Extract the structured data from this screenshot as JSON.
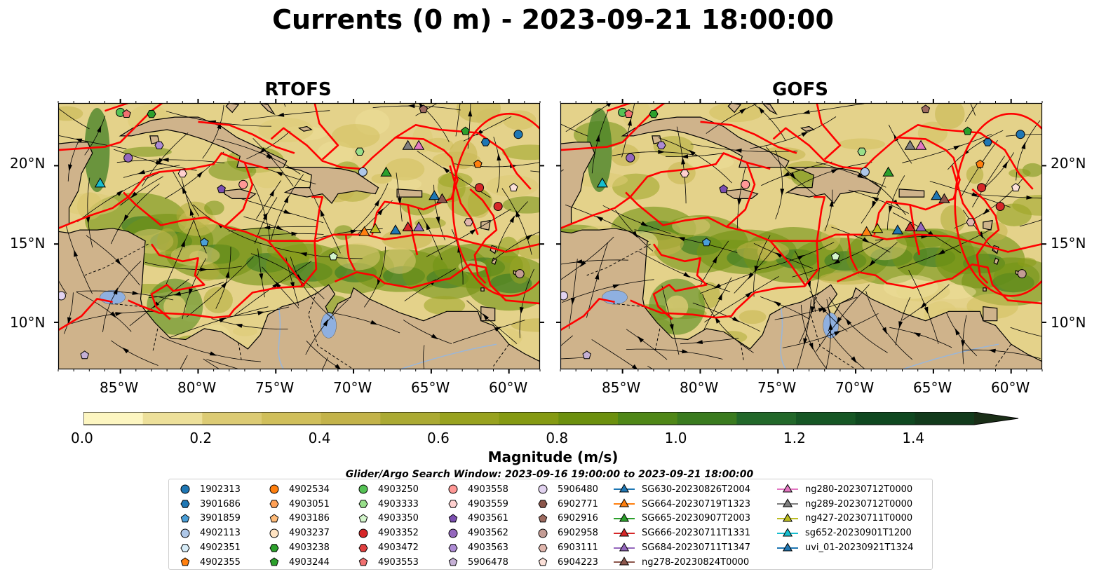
{
  "title": "Currents (0 m) - 2023-09-21 18:00:00",
  "panels": [
    {
      "name": "RTOFS"
    },
    {
      "name": "GOFS"
    }
  ],
  "lat_labels": [
    "20°N",
    "15°N",
    "10°N"
  ],
  "lon_labels": [
    "85°W",
    "80°W",
    "75°W",
    "70°W",
    "65°W",
    "60°W"
  ],
  "colorbar": {
    "label": "Magnitude (m/s)",
    "ticks": [
      "0.0",
      "0.2",
      "0.4",
      "0.6",
      "0.8",
      "1.0",
      "1.2",
      "1.4"
    ],
    "range": [
      0,
      1.5
    ],
    "colors": [
      "#fdf6c1",
      "#ede09a",
      "#dccb74",
      "#d0bf5b",
      "#c3b34a",
      "#abaa33",
      "#98a21f",
      "#859a12",
      "#6c900e",
      "#4f8717",
      "#3a7b1f",
      "#22682a",
      "#165725",
      "#0f4820",
      "#123b1c",
      "#1a2e17"
    ]
  },
  "search_window": "Glider/Argo Search Window: 2023-09-16 19:00:00 to 2023-09-21 18:00:00",
  "legend": [
    [
      {
        "label": "1902313",
        "marker": "circle",
        "color": "#1f77b4"
      },
      {
        "label": "3901686",
        "marker": "hexagon",
        "color": "#1f77b4"
      },
      {
        "label": "3901859",
        "marker": "pentagon",
        "color": "#4a9fd8"
      },
      {
        "label": "4902113",
        "marker": "circle",
        "color": "#aec7e8"
      },
      {
        "label": "4902351",
        "marker": "hexagon",
        "color": "#d6ecf8"
      },
      {
        "label": "4902355",
        "marker": "pentagon",
        "color": "#ff7f0e"
      }
    ],
    [
      {
        "label": "4902534",
        "marker": "circle",
        "color": "#ff7f0e"
      },
      {
        "label": "4903051",
        "marker": "hexagon",
        "color": "#ffa055"
      },
      {
        "label": "4903186",
        "marker": "pentagon",
        "color": "#ffbb78"
      },
      {
        "label": "4903237",
        "marker": "circle",
        "color": "#ffe3c2"
      },
      {
        "label": "4903238",
        "marker": "hexagon",
        "color": "#2ca02c"
      },
      {
        "label": "4903244",
        "marker": "pentagon",
        "color": "#2ca02c"
      }
    ],
    [
      {
        "label": "4903250",
        "marker": "circle",
        "color": "#55c255"
      },
      {
        "label": "4903333",
        "marker": "hexagon",
        "color": "#98df8a"
      },
      {
        "label": "4903350",
        "marker": "pentagon",
        "color": "#d4f5cc"
      },
      {
        "label": "4903352",
        "marker": "circle",
        "color": "#d62728"
      },
      {
        "label": "4903472",
        "marker": "hexagon",
        "color": "#e04040"
      },
      {
        "label": "4903553",
        "marker": "pentagon",
        "color": "#f07070"
      }
    ],
    [
      {
        "label": "4903558",
        "marker": "circle",
        "color": "#ff9896"
      },
      {
        "label": "4903559",
        "marker": "hexagon",
        "color": "#ffd0cf"
      },
      {
        "label": "4903561",
        "marker": "pentagon",
        "color": "#7b4fb0"
      },
      {
        "label": "4903562",
        "marker": "circle",
        "color": "#9467bd"
      },
      {
        "label": "4903563",
        "marker": "hexagon",
        "color": "#ad8bd4"
      },
      {
        "label": "5906478",
        "marker": "pentagon",
        "color": "#c5b0d5"
      }
    ],
    [
      {
        "label": "5906480",
        "marker": "circle",
        "color": "#e2d3f0"
      },
      {
        "label": "6902771",
        "marker": "hexagon",
        "color": "#8c564b"
      },
      {
        "label": "6902916",
        "marker": "pentagon",
        "color": "#9e6b60"
      },
      {
        "label": "6902958",
        "marker": "circle",
        "color": "#c49c94"
      },
      {
        "label": "6903111",
        "marker": "hexagon",
        "color": "#e0b6ad"
      },
      {
        "label": "6904223",
        "marker": "pentagon",
        "color": "#fbe0d8"
      }
    ],
    [
      {
        "label": "SG630-20230826T2004",
        "marker": "triangle",
        "color": "#1f77b4"
      },
      {
        "label": "SG664-20230719T1323",
        "marker": "triangle",
        "color": "#ff7f0e"
      },
      {
        "label": "SG665-20230907T2003",
        "marker": "triangle",
        "color": "#2ca02c"
      },
      {
        "label": "SG666-20230711T1331",
        "marker": "triangle",
        "color": "#d62728"
      },
      {
        "label": "SG684-20230711T1347",
        "marker": "triangle",
        "color": "#9467bd"
      },
      {
        "label": "ng278-20230824T0000",
        "marker": "triangle",
        "color": "#8c564b"
      }
    ],
    [
      {
        "label": "ng280-20230712T0000",
        "marker": "triangle",
        "color": "#e377c2"
      },
      {
        "label": "ng289-20230712T0000",
        "marker": "triangle",
        "color": "#7f7f7f"
      },
      {
        "label": "ng427-20230711T0000",
        "marker": "triangle",
        "color": "#bcbd22"
      },
      {
        "label": "sg652-20230901T1200",
        "marker": "triangle",
        "color": "#17becf"
      },
      {
        "label": "uvi_01-20230921T1324",
        "marker": "triangle",
        "color": "#1f77b4"
      }
    ]
  ],
  "colors": {
    "land": "#cfb38b",
    "eez": "#ff0000",
    "lake": "#8fb0e0",
    "river": "#9ab6d9"
  }
}
